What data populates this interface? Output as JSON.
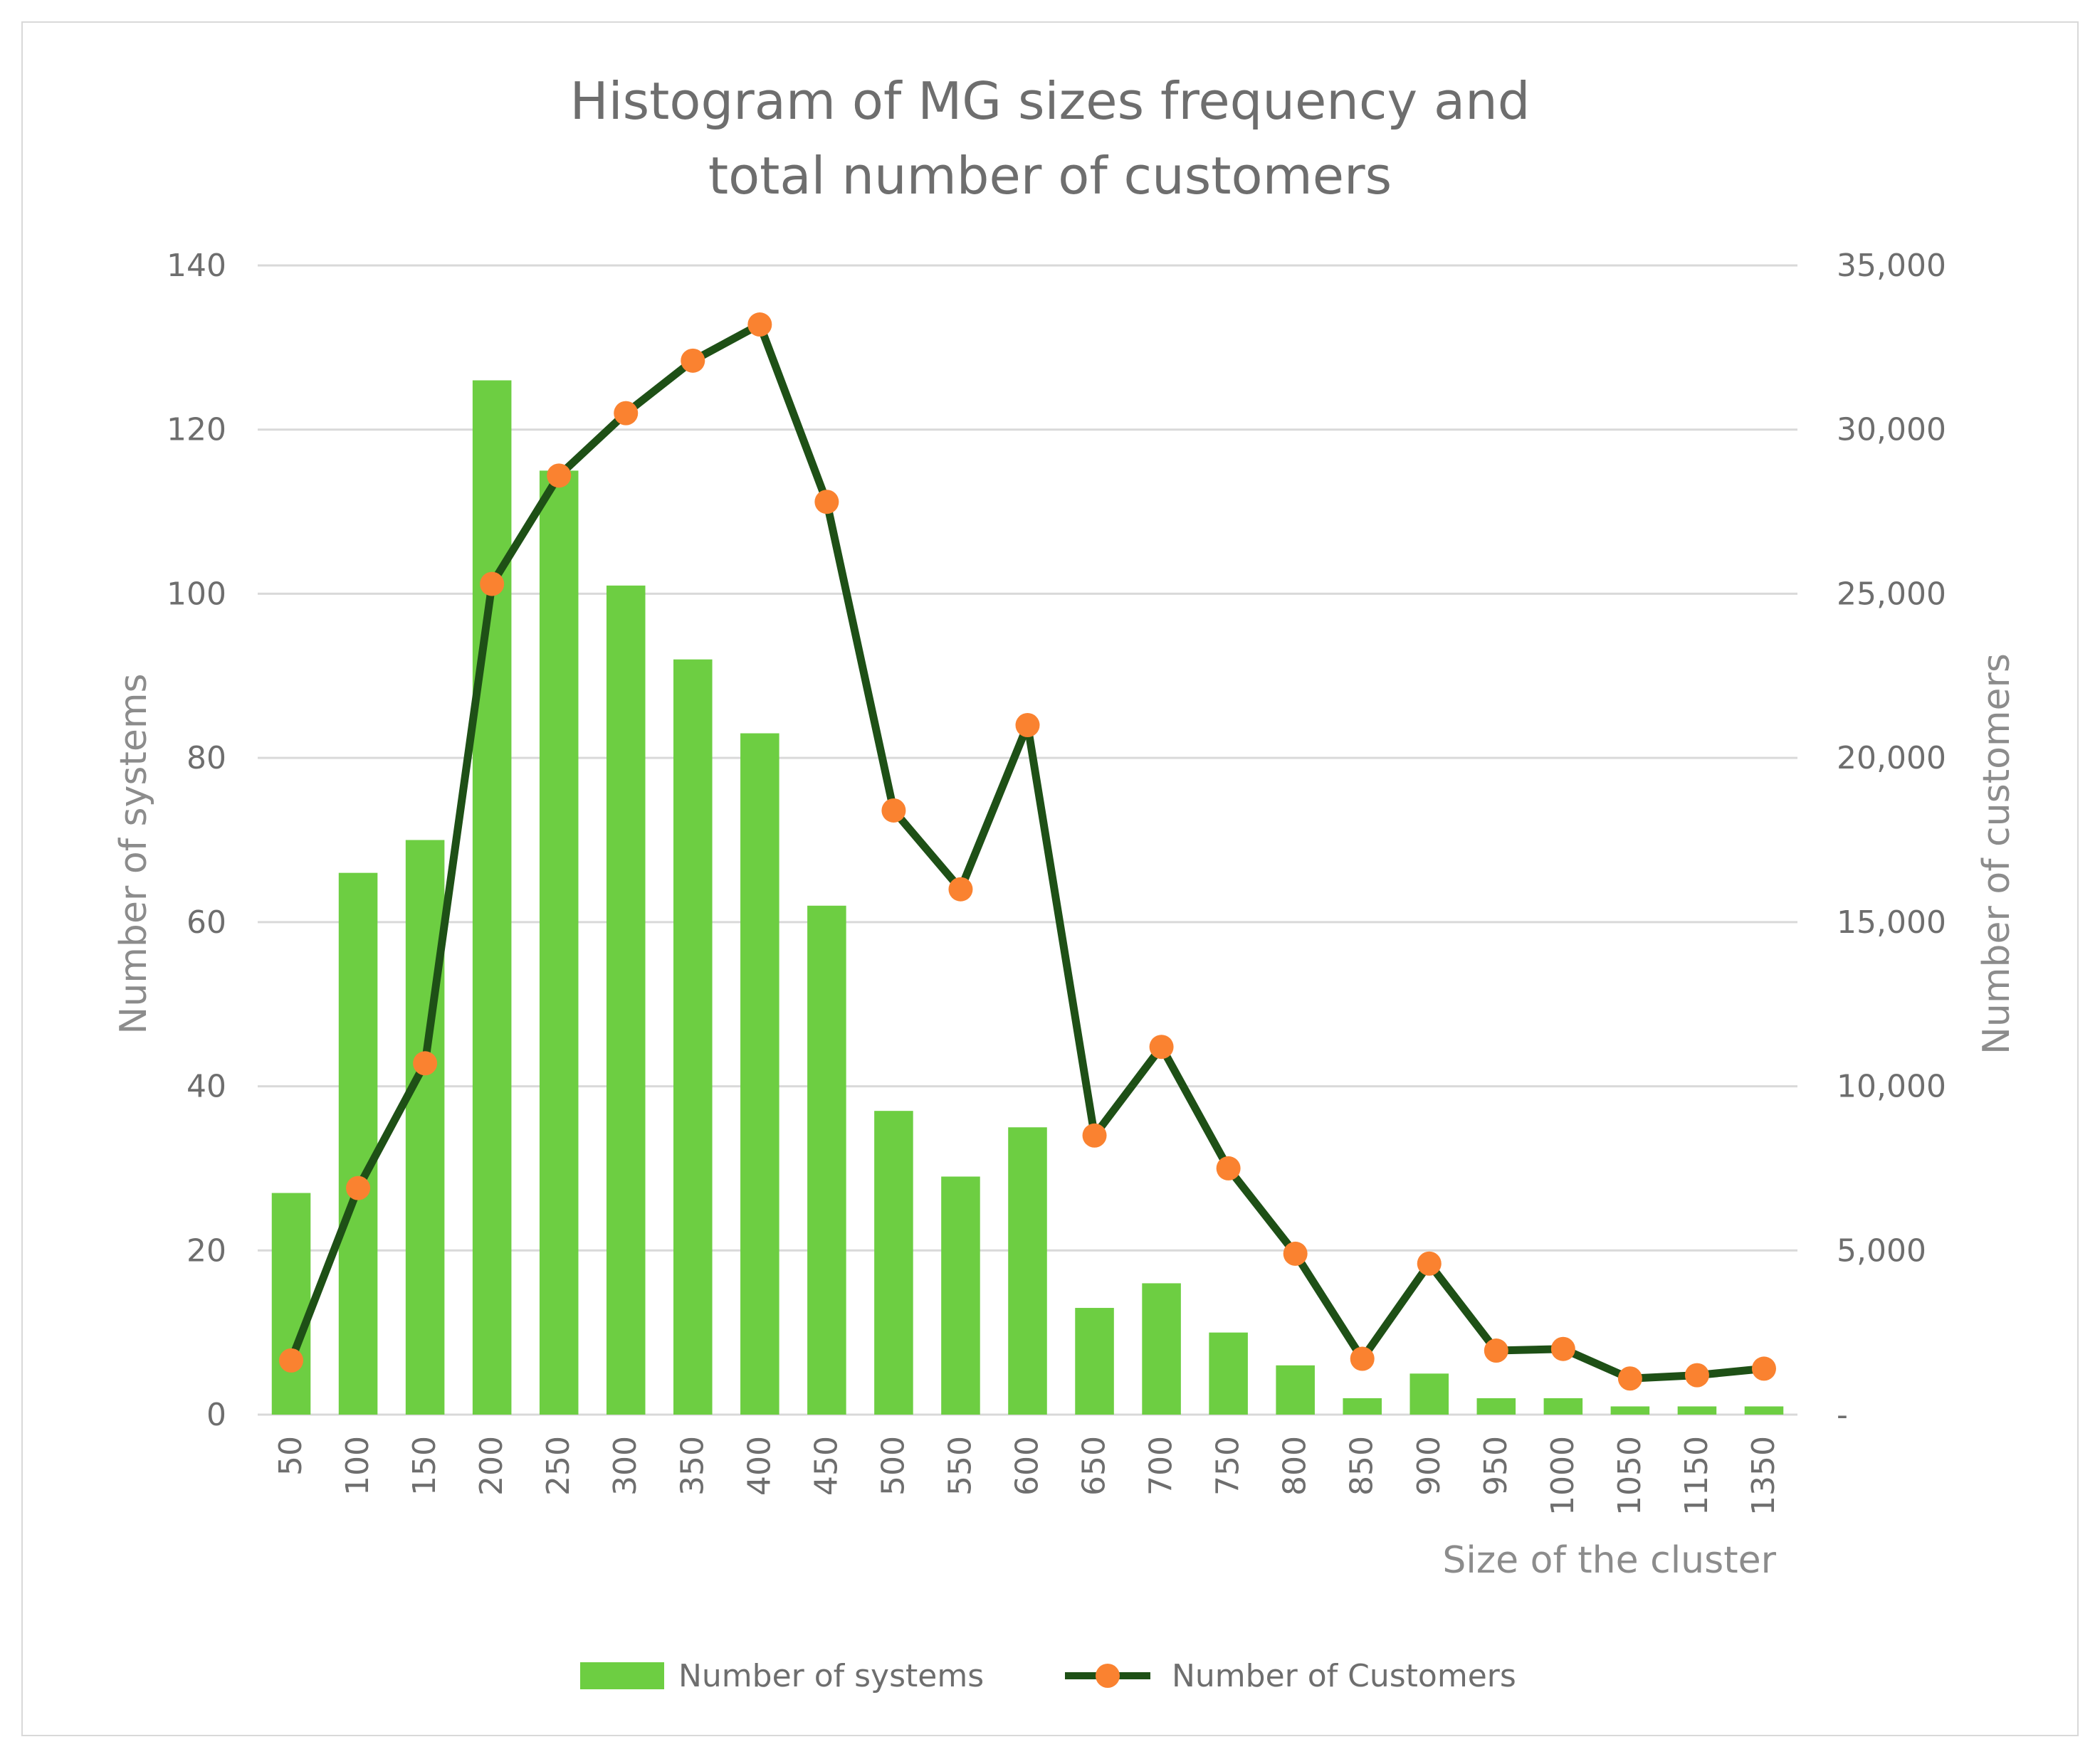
{
  "chart_data": {
    "type": "bar",
    "title_line1": "Histogram of MG sizes frequency and",
    "title_line2": "total number of customers",
    "xlabel": "Size of the cluster",
    "ylabel_left": "Number of systems",
    "ylabel_right": "Number of customers",
    "categories": [
      "50",
      "100",
      "150",
      "200",
      "250",
      "300",
      "350",
      "400",
      "450",
      "500",
      "550",
      "600",
      "650",
      "700",
      "750",
      "800",
      "850",
      "900",
      "950",
      "1000",
      "1050",
      "1150",
      "1350"
    ],
    "y_left_lim": [
      0,
      140
    ],
    "y_left_ticks": [
      "0",
      "20",
      "40",
      "60",
      "80",
      "100",
      "120",
      "140"
    ],
    "y_right_lim": [
      0,
      35000
    ],
    "y_right_ticks": [
      "-",
      "5,000",
      "10,000",
      "15,000",
      "20,000",
      "25,000",
      "30,000",
      "35,000"
    ],
    "grid": true,
    "series": [
      {
        "name": "Number of systems",
        "kind": "bar",
        "axis": "left",
        "color": "#6dce42",
        "values": [
          27,
          66,
          70,
          126,
          115,
          101,
          92,
          83,
          62,
          37,
          29,
          35,
          13,
          16,
          10,
          6,
          2,
          5,
          2,
          2,
          1,
          1,
          1
        ]
      },
      {
        "name": "Number of Customers",
        "kind": "line",
        "axis": "right",
        "line_color": "#1e5016",
        "marker_color": "#fa8230",
        "values": [
          1650,
          6900,
          10700,
          25300,
          28600,
          30500,
          32100,
          33200,
          27800,
          18400,
          16000,
          21000,
          8500,
          11200,
          7500,
          4900,
          1700,
          4600,
          1950,
          2000,
          1100,
          1200,
          1400
        ]
      }
    ],
    "legend_placement": "bottom-center"
  }
}
